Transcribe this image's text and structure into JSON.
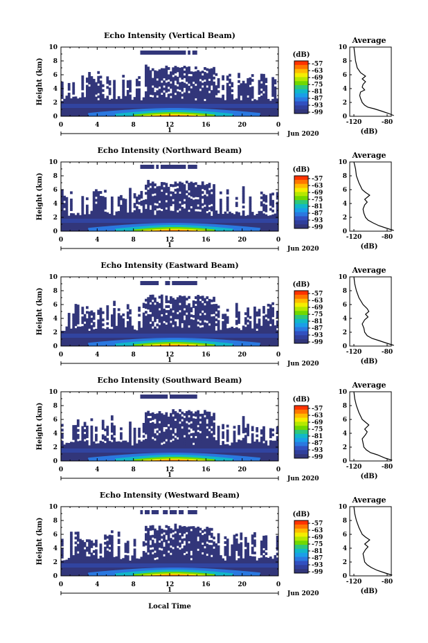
{
  "figure": {
    "xlabel": "Local Time",
    "date_label": "Jun 2020",
    "day_label": "1",
    "avg_title": "Average",
    "avg_xlabel": "(dB)",
    "cbar_unit": "(dB)"
  },
  "chart_data": [
    {
      "type": "heatmap",
      "title": "Echo Intensity (Vertical Beam)",
      "ylabel": "Height (km)",
      "xlabel": "Local Time",
      "x_ticks": [
        "0",
        "4",
        "8",
        "12",
        "16",
        "20",
        "0"
      ],
      "y_ticks": [
        "0",
        "2",
        "4",
        "6",
        "8",
        "10"
      ],
      "xlim": [
        0,
        24
      ],
      "ylim": [
        0,
        10
      ],
      "colorbar": {
        "label": "(dB)",
        "ticks": [
          "-57",
          "-63",
          "-69",
          "-75",
          "-81",
          "-87",
          "-93",
          "-99"
        ]
      },
      "profile": {
        "title": "Average",
        "xlabel": "(dB)",
        "x_ticks": [
          "-120",
          "-80"
        ],
        "y_ticks": [
          "0",
          "2",
          "4",
          "6",
          "8",
          "10"
        ],
        "cloud_top": 9.5,
        "points": [
          [
            -72,
            0.1
          ],
          [
            -78,
            0.4
          ],
          [
            -88,
            0.8
          ],
          [
            -96,
            1.1
          ],
          [
            -103,
            1.3
          ],
          [
            -107,
            1.6
          ],
          [
            -110,
            2.0
          ],
          [
            -112,
            2.6
          ],
          [
            -113,
            3.0
          ],
          [
            -112,
            3.5
          ],
          [
            -107,
            3.8
          ],
          [
            -110,
            4.2
          ],
          [
            -109,
            4.6
          ],
          [
            -106,
            5.0
          ],
          [
            -110,
            5.4
          ],
          [
            -106,
            5.8
          ],
          [
            -112,
            6.3
          ],
          [
            -116,
            7.0
          ],
          [
            -118,
            8.0
          ],
          [
            -119,
            9.0
          ],
          [
            -120,
            10
          ]
        ]
      }
    },
    {
      "type": "heatmap",
      "title": "Echo Intensity (Northward Beam)",
      "ylabel": "Height (km)",
      "xlabel": "Local Time",
      "x_ticks": [
        "0",
        "4",
        "8",
        "12",
        "16",
        "20",
        "0"
      ],
      "y_ticks": [
        "0",
        "2",
        "4",
        "6",
        "8",
        "10"
      ],
      "xlim": [
        0,
        24
      ],
      "ylim": [
        0,
        10
      ],
      "colorbar": {
        "label": "(dB)",
        "ticks": [
          "-57",
          "-63",
          "-69",
          "-75",
          "-81",
          "-87",
          "-93",
          "-99"
        ]
      },
      "profile": {
        "title": "Average",
        "xlabel": "(dB)",
        "x_ticks": [
          "-120",
          "-80"
        ],
        "y_ticks": [
          "0",
          "2",
          "4",
          "6",
          "8",
          "10"
        ],
        "cloud_top": 9.6,
        "points": [
          [
            -72,
            0.1
          ],
          [
            -80,
            0.4
          ],
          [
            -90,
            0.8
          ],
          [
            -97,
            1.2
          ],
          [
            -103,
            1.6
          ],
          [
            -106,
            2.0
          ],
          [
            -108,
            2.6
          ],
          [
            -109,
            3.2
          ],
          [
            -107,
            3.8
          ],
          [
            -104,
            4.2
          ],
          [
            -107,
            4.6
          ],
          [
            -101,
            5.2
          ],
          [
            -106,
            5.6
          ],
          [
            -110,
            6.0
          ],
          [
            -114,
            7.0
          ],
          [
            -117,
            8.0
          ],
          [
            -118,
            9.0
          ],
          [
            -120,
            10
          ]
        ]
      }
    },
    {
      "type": "heatmap",
      "title": "Echo Intensity (Eastward Beam)",
      "ylabel": "Height (km)",
      "xlabel": "Local Time",
      "x_ticks": [
        "0",
        "4",
        "8",
        "12",
        "16",
        "20",
        "0"
      ],
      "y_ticks": [
        "0",
        "2",
        "4",
        "6",
        "8",
        "10"
      ],
      "xlim": [
        0,
        24
      ],
      "ylim": [
        0,
        10
      ],
      "colorbar": {
        "label": "(dB)",
        "ticks": [
          "-57",
          "-63",
          "-69",
          "-75",
          "-81",
          "-87",
          "-93",
          "-99"
        ]
      },
      "profile": {
        "title": "Average",
        "xlabel": "(dB)",
        "x_ticks": [
          "-120",
          "-80"
        ],
        "y_ticks": [
          "0",
          "2",
          "4",
          "6",
          "8",
          "10"
        ],
        "cloud_top": 9.4,
        "points": [
          [
            -72,
            0.1
          ],
          [
            -80,
            0.4
          ],
          [
            -90,
            0.8
          ],
          [
            -98,
            1.1
          ],
          [
            -104,
            1.5
          ],
          [
            -107,
            2.0
          ],
          [
            -108,
            2.6
          ],
          [
            -110,
            3.2
          ],
          [
            -107,
            3.8
          ],
          [
            -103,
            4.2
          ],
          [
            -106,
            4.6
          ],
          [
            -102,
            5.0
          ],
          [
            -104,
            5.4
          ],
          [
            -109,
            6.0
          ],
          [
            -114,
            7.0
          ],
          [
            -117,
            8.0
          ],
          [
            -119,
            9.0
          ],
          [
            -120,
            10
          ]
        ]
      }
    },
    {
      "type": "heatmap",
      "title": "Echo Intensity (Southward Beam)",
      "ylabel": "Height (km)",
      "xlabel": "Local Time",
      "x_ticks": [
        "0",
        "4",
        "8",
        "12",
        "16",
        "20",
        "0"
      ],
      "y_ticks": [
        "0",
        "2",
        "4",
        "6",
        "8",
        "10"
      ],
      "xlim": [
        0,
        24
      ],
      "ylim": [
        0,
        10
      ],
      "colorbar": {
        "label": "(dB)",
        "ticks": [
          "-57",
          "-63",
          "-69",
          "-75",
          "-81",
          "-87",
          "-93",
          "-99"
        ]
      },
      "profile": {
        "title": "Average",
        "xlabel": "(dB)",
        "x_ticks": [
          "-120",
          "-80"
        ],
        "y_ticks": [
          "0",
          "2",
          "4",
          "6",
          "8",
          "10"
        ],
        "cloud_top": 9.6,
        "points": [
          [
            -74,
            0.1
          ],
          [
            -82,
            0.4
          ],
          [
            -92,
            0.9
          ],
          [
            -100,
            1.2
          ],
          [
            -105,
            1.6
          ],
          [
            -108,
            2.0
          ],
          [
            -109,
            2.6
          ],
          [
            -110,
            3.2
          ],
          [
            -106,
            3.8
          ],
          [
            -104,
            4.2
          ],
          [
            -107,
            4.6
          ],
          [
            -102,
            5.2
          ],
          [
            -106,
            5.6
          ],
          [
            -110,
            6.0
          ],
          [
            -114,
            7.0
          ],
          [
            -117,
            8.0
          ],
          [
            -119,
            9.0
          ],
          [
            -120,
            10
          ]
        ]
      }
    },
    {
      "type": "heatmap",
      "title": "Echo Intensity (Westward Beam)",
      "ylabel": "Height (km)",
      "xlabel": "Local Time",
      "x_ticks": [
        "0",
        "4",
        "8",
        "12",
        "16",
        "20",
        "0"
      ],
      "y_ticks": [
        "0",
        "2",
        "4",
        "6",
        "8",
        "10"
      ],
      "xlim": [
        0,
        24
      ],
      "ylim": [
        0,
        10
      ],
      "colorbar": {
        "label": "(dB)",
        "ticks": [
          "-57",
          "-63",
          "-69",
          "-75",
          "-81",
          "-87",
          "-93",
          "-99"
        ]
      },
      "profile": {
        "title": "Average",
        "xlabel": "(dB)",
        "x_ticks": [
          "-120",
          "-80"
        ],
        "y_ticks": [
          "0",
          "2",
          "4",
          "6",
          "8",
          "10"
        ],
        "cloud_top": 9.5,
        "points": [
          [
            -74,
            0.1
          ],
          [
            -82,
            0.4
          ],
          [
            -92,
            0.8
          ],
          [
            -99,
            1.2
          ],
          [
            -104,
            1.6
          ],
          [
            -107,
            2.0
          ],
          [
            -108,
            2.6
          ],
          [
            -109,
            3.2
          ],
          [
            -106,
            3.8
          ],
          [
            -103,
            4.2
          ],
          [
            -107,
            4.6
          ],
          [
            -101,
            5.2
          ],
          [
            -106,
            5.6
          ],
          [
            -110,
            6.0
          ],
          [
            -114,
            7.0
          ],
          [
            -117,
            8.0
          ],
          [
            -119,
            9.0
          ],
          [
            -120,
            10
          ]
        ]
      }
    }
  ],
  "colors": {
    "colorbar": [
      "#ff3300",
      "#ff7700",
      "#ffbb00",
      "#f4ee00",
      "#b5e800",
      "#6fd800",
      "#2ec77a",
      "#11b8c8",
      "#1a9ee8",
      "#2a78e0",
      "#3150c0",
      "#303f9c",
      "#32367a"
    ],
    "background_echo": "#32367a"
  }
}
